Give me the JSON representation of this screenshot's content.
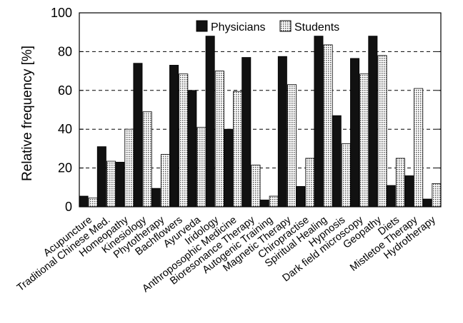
{
  "chart_data": {
    "type": "bar",
    "ylabel": "Relative frequency [%]",
    "xlabel": "",
    "ylim": [
      0,
      100
    ],
    "yticks": [
      0,
      20,
      40,
      60,
      80,
      100
    ],
    "grid": "horizontal dashed",
    "legend_position": "top-right",
    "categories": [
      "Acupuncture",
      "Traditional Chinese Med.",
      "Homeopathy",
      "Kinesiology",
      "Phytotherapy",
      "Bachflowers",
      "Ayurveda",
      "Iridology",
      "Anthroposophic Medicine",
      "Bioresonance Therapy",
      "Autogenic Training",
      "Magnetic Therapy",
      "Chiropractise",
      "Spiritual Healing",
      "Hypnosis",
      "Dark field microscopy",
      "Geopathy",
      "Diets",
      "Mistletoe Therapy",
      "Hydrotherapy"
    ],
    "series": [
      {
        "name": "Physicians",
        "color": "#111111",
        "pattern": "solid",
        "values": [
          5.5,
          31,
          23,
          74,
          9.5,
          73,
          60,
          88,
          40,
          77,
          3.5,
          77.5,
          10.5,
          88,
          47,
          76.5,
          88,
          11,
          16,
          4
        ]
      },
      {
        "name": "Students",
        "color": "#dddddd",
        "pattern": "dotted",
        "values": [
          4.5,
          23.5,
          40,
          49,
          27,
          68.5,
          41,
          70,
          59.5,
          21.5,
          5.5,
          63,
          25,
          83.5,
          32.5,
          68.5,
          78,
          25,
          61,
          12
        ]
      }
    ]
  }
}
